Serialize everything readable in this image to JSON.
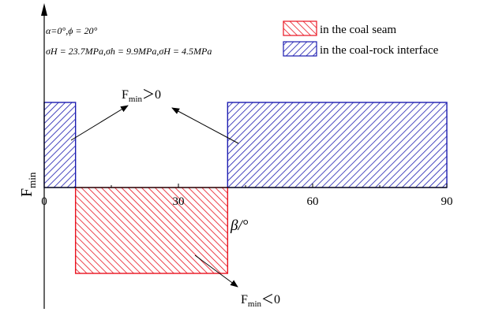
{
  "chart_data": {
    "type": "bar",
    "title": "",
    "xlabel": "β/°",
    "ylabel": "F",
    "ylabel_subscript": "min",
    "xlim": [
      0,
      90
    ],
    "xticks": [
      "0",
      "30",
      "60",
      "90"
    ],
    "xtick_values": [
      0,
      30,
      60,
      90
    ],
    "params": {
      "line1": "α=0°,ϕ = 20°",
      "line2": "σH = 23.7MPa,σh = 9.9MPa,σH = 4.5MPa"
    },
    "legend": {
      "placement": "top-right",
      "entries": [
        {
          "key": "seam",
          "label": "in the coal seam",
          "color": "#e8121e"
        },
        {
          "key": "interface",
          "label": "in the coal-rock interface",
          "color": "#1c1cb0"
        }
      ]
    },
    "series": [
      {
        "name": "in the coal-rock interface",
        "sign": "positive",
        "segments": [
          {
            "x_start": 0,
            "x_end": 7
          },
          {
            "x_start": 41,
            "x_end": 90
          }
        ]
      },
      {
        "name": "in the coal seam",
        "sign": "negative",
        "segments": [
          {
            "x_start": 7,
            "x_end": 41
          }
        ]
      }
    ],
    "annotations": [
      {
        "key": "positive",
        "text_main": "F",
        "text_sub": "min",
        "text_rest": "＞0"
      },
      {
        "key": "negative",
        "text_main": "F",
        "text_sub": "min",
        "text_rest": "＜0"
      }
    ],
    "grid": false
  }
}
